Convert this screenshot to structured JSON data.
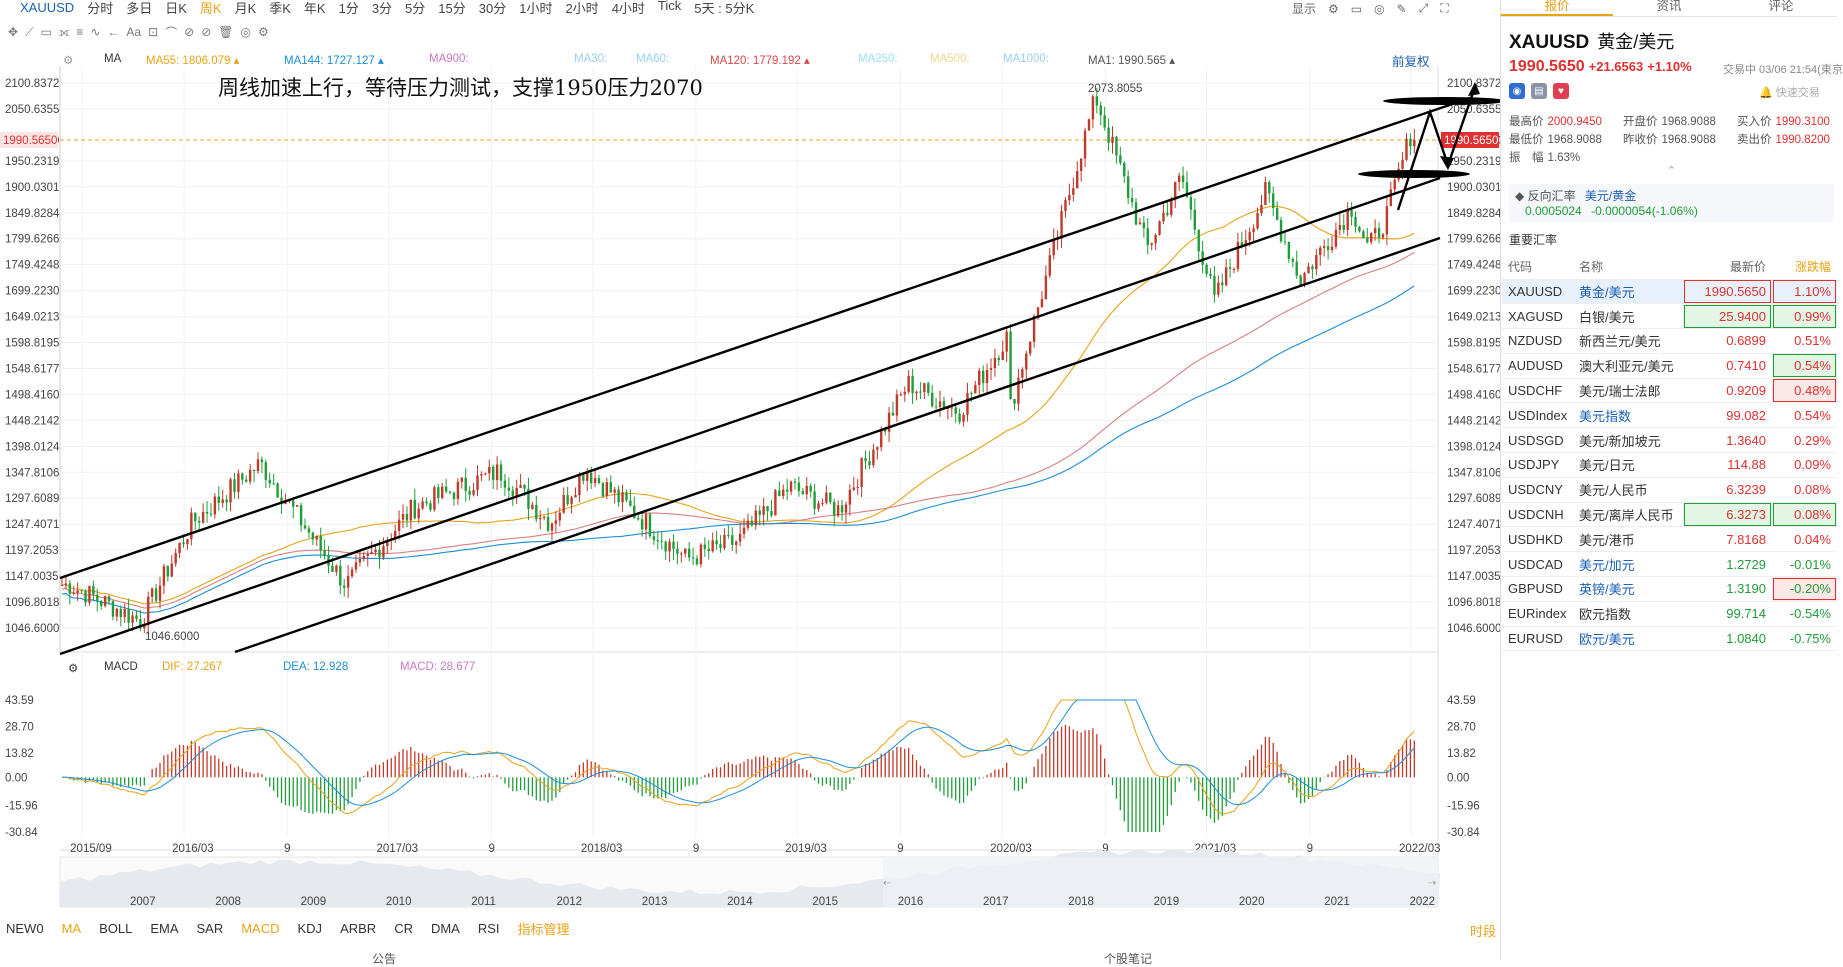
{
  "topbar": {
    "symbol": "XAUUSD",
    "periods": [
      "分时",
      "多日",
      "日K",
      "周K",
      "月K",
      "季K",
      "年K",
      "1分",
      "3分",
      "5分",
      "15分",
      "30分",
      "1小时",
      "2小时",
      "4小时",
      "Tick",
      "5天 : 5分K"
    ],
    "active": "周K",
    "right": [
      "显示"
    ]
  },
  "toolbar_items": [
    "✥",
    "⟋",
    "▭",
    "⟗",
    "≡",
    "∿",
    "←",
    "Aa",
    "⊡",
    "⌒",
    "⊘",
    "⊘",
    "🗑",
    "◎",
    "⚙"
  ],
  "chart_header": {
    "ma_label": "MA",
    "ma": [
      {
        "label": "MA55: 1806.079",
        "color": "#e8a317"
      },
      {
        "label": "MA144: 1727.127",
        "color": "#1a8fd8"
      },
      {
        "label": "MA900:",
        "color": "#c878c8"
      },
      {
        "label": "MA30:",
        "color": "#9ad0f0"
      },
      {
        "label": "MA60:",
        "color": "#9ad0f0"
      },
      {
        "label": "MA120: 1779.192",
        "color": "#d84848"
      },
      {
        "label": "MA250:",
        "color": "#9ae0f8"
      },
      {
        "label": "MA500:",
        "color": "#f0d890"
      },
      {
        "label": "MA1000:",
        "color": "#9ad0f0"
      },
      {
        "label": "MA1: 1990.565",
        "color": "#555555"
      }
    ],
    "fuquan": "前复权"
  },
  "annotation": "周线加速上行，等待压力测试，支撑1950压力2070",
  "high_label": "2073.8055",
  "low_label": "1046.6000",
  "current_price_label": "1990.5650",
  "price_axis": [
    "2100.8372",
    "2050.6355",
    "1990.5650",
    "1950.2319",
    "1900.0301",
    "1849.8284",
    "1799.6266",
    "1749.4248",
    "1699.2230",
    "1649.0213",
    "1598.8195",
    "1548.6177",
    "1498.4160",
    "1448.2142",
    "1398.0124",
    "1347.8106",
    "1297.6089",
    "1247.4071",
    "1197.2053",
    "1147.0035",
    "1096.8018",
    "1046.6000"
  ],
  "macd_header": {
    "label": "MACD",
    "dif": "DIF: 27.267",
    "dea": "DEA: 12.928",
    "macd": "MACD: 28.677"
  },
  "macd_axis": [
    "43.59",
    "28.70",
    "13.82",
    "0.00",
    "-15.96",
    "-30.84"
  ],
  "time_axis": [
    "2015/09",
    "2016/03",
    "9",
    "2017/03",
    "9",
    "2018/03",
    "9",
    "2019/03",
    "9",
    "2020/03",
    "9",
    "2021/03",
    "9",
    "2022/03"
  ],
  "nav_years": [
    "2007",
    "2008",
    "2009",
    "2010",
    "2011",
    "2012",
    "2013",
    "2014",
    "2015",
    "2016",
    "2017",
    "2018",
    "2019",
    "2020",
    "2021",
    "2022"
  ],
  "indicators": [
    "NEW0",
    "MA",
    "BOLL",
    "EMA",
    "SAR",
    "MACD",
    "KDJ",
    "ARBR",
    "CR",
    "DMA",
    "RSI",
    "指标管理"
  ],
  "indicator_right": "时段",
  "bottom_labels": [
    "公告",
    "个股笔记"
  ],
  "panel": {
    "tabs": [
      "报价",
      "资讯",
      "评论"
    ],
    "title": "XAUUSD",
    "name": "黄金/美元",
    "price": "1990.5650",
    "change": "+21.6563",
    "pct": "+1.10%",
    "time": "交易中 03/06 21:54(東京",
    "quick": "快速交易",
    "stats": [
      {
        "k": "最高价",
        "v": "2000.9450",
        "c": "up"
      },
      {
        "k": "开盘价",
        "v": "1968.9088",
        "c": ""
      },
      {
        "k": "买入价",
        "v": "1990.3100",
        "c": "up"
      },
      {
        "k": "最低价",
        "v": "1968.9088",
        "c": ""
      },
      {
        "k": "昨收价",
        "v": "1968.9088",
        "c": ""
      },
      {
        "k": "卖出价",
        "v": "1990.8200",
        "c": "up"
      },
      {
        "k": "振　幅",
        "v": "1.63%",
        "c": ""
      }
    ],
    "fx_label": "反向汇率",
    "fx_pair": "美元/黄金",
    "fx_val": "0.0005024",
    "fx_chg": "-0.0000054(-1.06%)",
    "section": "重要汇率",
    "cols": [
      "代码",
      "名称",
      "最新价",
      "涨跌幅"
    ],
    "rows": [
      {
        "code": "XAUUSD",
        "name": "黄金/美元",
        "price": "1990.5650",
        "pct": "1.10%",
        "dir": "up",
        "box": "up",
        "sel": true
      },
      {
        "code": "XAGUSD",
        "name": "白银/美元",
        "price": "25.9400",
        "pct": "0.99%",
        "dir": "up",
        "box": "dn",
        "sel": false
      },
      {
        "code": "NZDUSD",
        "name": "新西兰元/美元",
        "price": "0.6899",
        "pct": "0.51%",
        "dir": "up",
        "box": "",
        "sel": false
      },
      {
        "code": "AUDUSD",
        "name": "澳大利亚元/美元",
        "price": "0.7410",
        "pct": "0.54%",
        "dir": "up",
        "box": "pdn",
        "sel": false
      },
      {
        "code": "USDCHF",
        "name": "美元/瑞士法郎",
        "price": "0.9209",
        "pct": "0.48%",
        "dir": "up",
        "box": "pup",
        "sel": false
      },
      {
        "code": "USDIndex",
        "name": "美元指数",
        "price": "99.082",
        "pct": "0.54%",
        "dir": "up",
        "box": "",
        "sel": false
      },
      {
        "code": "USDSGD",
        "name": "美元/新加坡元",
        "price": "1.3640",
        "pct": "0.29%",
        "dir": "up",
        "box": "",
        "sel": false
      },
      {
        "code": "USDJPY",
        "name": "美元/日元",
        "price": "114.88",
        "pct": "0.09%",
        "dir": "up",
        "box": "",
        "sel": false
      },
      {
        "code": "USDCNY",
        "name": "美元/人民币",
        "price": "6.3239",
        "pct": "0.08%",
        "dir": "up",
        "box": "",
        "sel": false
      },
      {
        "code": "USDCNH",
        "name": "美元/离岸人民币",
        "price": "6.3273",
        "pct": "0.08%",
        "dir": "up",
        "box": "dn",
        "sel": false
      },
      {
        "code": "USDHKD",
        "name": "美元/港币",
        "price": "7.8168",
        "pct": "0.04%",
        "dir": "up",
        "box": "",
        "sel": false
      },
      {
        "code": "USDCAD",
        "name": "美元/加元",
        "price": "1.2729",
        "pct": "-0.01%",
        "dir": "dn",
        "box": "",
        "sel": false
      },
      {
        "code": "GBPUSD",
        "name": "英镑/美元",
        "price": "1.3190",
        "pct": "-0.20%",
        "dir": "dn",
        "box": "pup",
        "sel": false
      },
      {
        "code": "EURindex",
        "name": "欧元指数",
        "price": "99.714",
        "pct": "-0.54%",
        "dir": "dn",
        "box": "",
        "sel": false
      },
      {
        "code": "EURUSD",
        "name": "欧元/美元",
        "price": "1.0840",
        "pct": "-0.75%",
        "dir": "dn",
        "box": "",
        "sel": false
      }
    ]
  },
  "chart_data": {
    "type": "candlestick",
    "symbol": "XAUUSD",
    "period": "weekly",
    "y_range": [
      1046.6,
      2100.8372
    ],
    "macd_range": [
      -30.84,
      43.59
    ],
    "x_range": [
      "2015-08",
      "2022-03"
    ],
    "anchors": [
      [
        "2015-09",
        1130
      ],
      [
        "2015-12",
        1060
      ],
      [
        "2016-03",
        1250
      ],
      [
        "2016-07",
        1365
      ],
      [
        "2016-12",
        1130
      ],
      [
        "2017-04",
        1280
      ],
      [
        "2017-09",
        1350
      ],
      [
        "2017-12",
        1250
      ],
      [
        "2018-02",
        1355
      ],
      [
        "2018-08",
        1180
      ],
      [
        "2018-11",
        1215
      ],
      [
        "2019-02",
        1320
      ],
      [
        "2019-05",
        1275
      ],
      [
        "2019-09",
        1520
      ],
      [
        "2019-12",
        1465
      ],
      [
        "2020-03",
        1620
      ],
      [
        "2020-03",
        1470
      ],
      [
        "2020-08",
        2073.8055
      ],
      [
        "2020-11",
        1780
      ],
      [
        "2021-01",
        1920
      ],
      [
        "2021-03",
        1680
      ],
      [
        "2021-06",
        1890
      ],
      [
        "2021-08",
        1720
      ],
      [
        "2021-11",
        1860
      ],
      [
        "2021-12",
        1780
      ],
      [
        "2022-01",
        1840
      ],
      [
        "2022-03",
        2000
      ],
      [
        "2022-03",
        1990.565
      ]
    ],
    "ma": [
      {
        "name": "MA55",
        "value": 1806.079
      },
      {
        "name": "MA120",
        "value": 1779.192
      },
      {
        "name": "MA144",
        "value": 1727.127
      },
      {
        "name": "MA1",
        "value": 1990.565
      }
    ],
    "macd": {
      "dif": 27.267,
      "dea": 12.928,
      "macd": 28.677
    },
    "drawn_channel": {
      "support": 1950,
      "resistance": 2070
    }
  }
}
